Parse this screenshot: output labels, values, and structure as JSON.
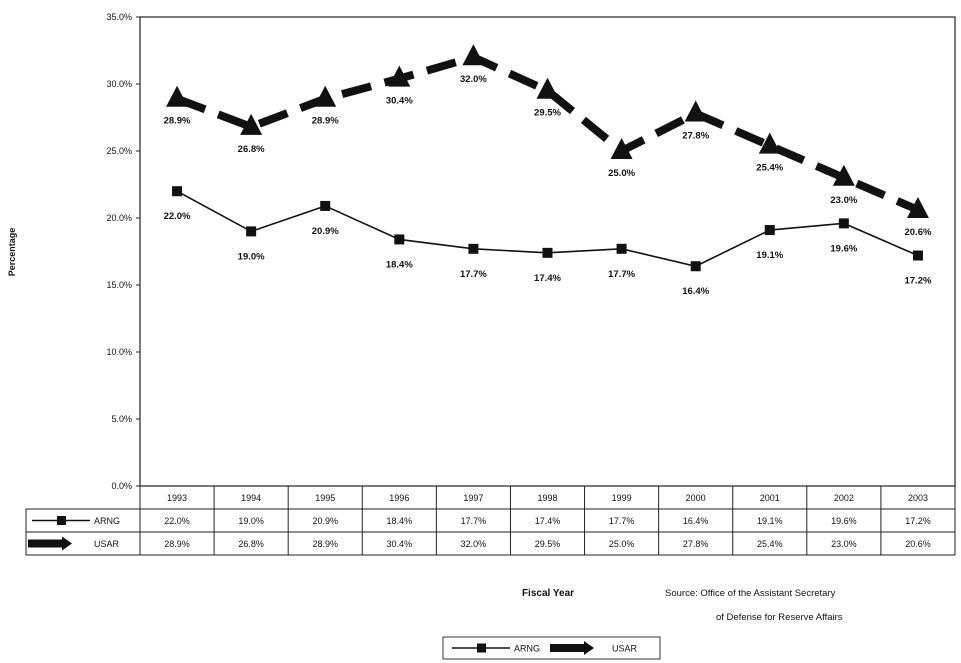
{
  "chart_data": {
    "type": "line",
    "title": "",
    "ylabel": "Percentage",
    "xlabel": "Fiscal Year",
    "ylim": [
      0,
      35
    ],
    "y_ticks": [
      "0.0%",
      "5.0%",
      "10.0%",
      "15.0%",
      "20.0%",
      "25.0%",
      "30.0%",
      "35.0%"
    ],
    "categories": [
      "1993",
      "1994",
      "1995",
      "1996",
      "1997",
      "1998",
      "1999",
      "2000",
      "2001",
      "2002",
      "2003"
    ],
    "series": [
      {
        "name": "ARNG",
        "values": [
          22.0,
          19.0,
          20.9,
          18.4,
          17.7,
          17.4,
          17.7,
          16.4,
          19.1,
          19.6,
          17.2
        ],
        "labels": [
          "22.0%",
          "19.0%",
          "20.9%",
          "18.4%",
          "17.7%",
          "17.4%",
          "17.7%",
          "16.4%",
          "19.1%",
          "19.6%",
          "17.2%"
        ],
        "marker": "square",
        "color": "#111111"
      },
      {
        "name": "USAR",
        "values": [
          28.9,
          26.8,
          28.9,
          30.4,
          32.0,
          29.5,
          25.0,
          27.8,
          25.4,
          23.0,
          20.6
        ],
        "labels": [
          "28.9%",
          "26.8%",
          "28.9%",
          "30.4%",
          "32.0%",
          "29.5%",
          "25.0%",
          "27.8%",
          "25.4%",
          "23.0%",
          "20.6%"
        ],
        "marker": "triangle",
        "color": "#111111"
      }
    ],
    "grid": false,
    "legend_position": "bottom-center",
    "source": "Source:  Office of the Assistant Secretary",
    "source_line2": "of Defense for Reserve Affairs"
  }
}
